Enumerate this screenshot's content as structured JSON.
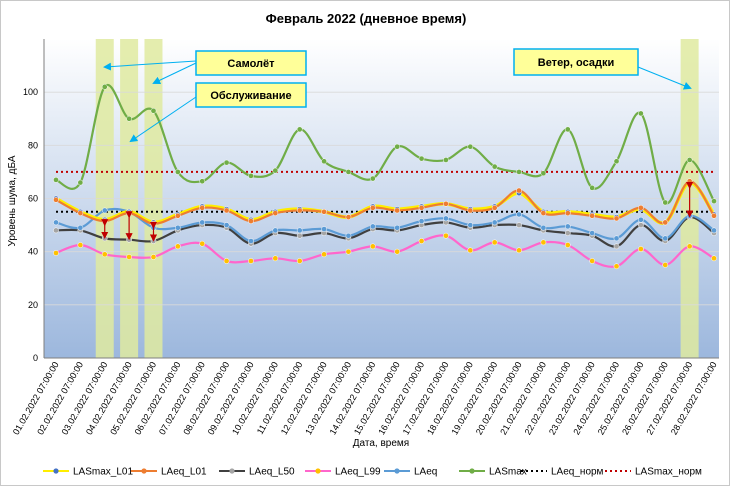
{
  "chart_data": {
    "type": "line",
    "title": "Февраль 2022 (дневное время)",
    "xlabel": "Дата, время",
    "ylabel": "Уровень шума, дБА",
    "ylim": [
      0,
      120
    ],
    "yticks": [
      0,
      20,
      40,
      60,
      80,
      100
    ],
    "grid": true,
    "legend_position": "bottom",
    "categories": [
      "01.02.2022 07:00:00",
      "02.02.2022 07:00:00",
      "03.02.2022 07:00:00",
      "04.02.2022 07:00:00",
      "05.02.2022 07:00:00",
      "06.02.2022 07:00:00",
      "07.02.2022 07:00:00",
      "08.02.2022 07:00:00",
      "09.02.2022 07:00:00",
      "10.02.2022 07:00:00",
      "11.02.2022 07:00:00",
      "12.02.2022 07:00:00",
      "13.02.2022 07:00:00",
      "14.02.2022 07:00:00",
      "15.02.2022 07:00:00",
      "16.02.2022 07:00:00",
      "17.02.2022 07:00:00",
      "18.02.2022 07:00:00",
      "19.02.2022 07:00:00",
      "20.02.2022 07:00:00",
      "21.02.2022 07:00:00",
      "22.02.2022 07:00:00",
      "23.02.2022 07:00:00",
      "24.02.2022 07:00:00",
      "25.02.2022 07:00:00",
      "26.02.2022 07:00:00",
      "27.02.2022 07:00:00",
      "28.02.2022 07:00:00"
    ],
    "series": [
      {
        "name": "LASmax_L01",
        "color": "#ffee00",
        "marker": "#4472c4",
        "style": "solid",
        "values": [
          60,
          55,
          52,
          55,
          51,
          54,
          57,
          56,
          52,
          55,
          56,
          55,
          53,
          57,
          56,
          57,
          58,
          56,
          57,
          62,
          55,
          55,
          54,
          53,
          56,
          51,
          66,
          54
        ]
      },
      {
        "name": "LAeq_L01",
        "color": "#ed7d31",
        "marker": "#ed7d31",
        "style": "solid",
        "values": [
          59.5,
          54.5,
          51.5,
          54.5,
          50.5,
          53.5,
          56.5,
          55.5,
          51.5,
          54.5,
          55.5,
          55,
          53,
          56.5,
          55.5,
          56.5,
          58,
          55.5,
          56.5,
          63,
          54.5,
          54.5,
          53.5,
          52.5,
          56.5,
          51,
          66.5,
          53.5
        ]
      },
      {
        "name": "LAeq_L50",
        "color": "#404040",
        "marker": "#a5a5a5",
        "style": "solid",
        "values": [
          48,
          48,
          45,
          44.5,
          44,
          48,
          50,
          49,
          43,
          47,
          46,
          47,
          45,
          48.5,
          48,
          50,
          51,
          49,
          50,
          50,
          48,
          47,
          46,
          42,
          50,
          44,
          53,
          47
        ]
      },
      {
        "name": "LAeq_L99",
        "color": "#ff66cc",
        "marker": "#ffc000",
        "style": "solid",
        "values": [
          39.5,
          42.5,
          39,
          38,
          38,
          42,
          43,
          36.5,
          36.5,
          37.5,
          36.5,
          39,
          40,
          42,
          40,
          44,
          46,
          40.5,
          43.5,
          40.5,
          43.5,
          42.5,
          36.5,
          34.5,
          41,
          35,
          42,
          37.5
        ]
      },
      {
        "name": "LAeq",
        "color": "#5b9bd5",
        "marker": "#5b9bd5",
        "style": "solid",
        "values": [
          51,
          49,
          55.5,
          55,
          49,
          49,
          51,
          50,
          44,
          48,
          48,
          48.5,
          46,
          49.5,
          49,
          51.5,
          52.5,
          50,
          51,
          54,
          49,
          49.5,
          47,
          45,
          52,
          45,
          53.5,
          48
        ]
      },
      {
        "name": "LASmax",
        "color": "#70ad47",
        "marker": "#70ad47",
        "style": "solid",
        "values": [
          67,
          66,
          102,
          90,
          93,
          70,
          66.5,
          73.5,
          68.5,
          70.5,
          86,
          74,
          70,
          67.5,
          79.5,
          75,
          74.5,
          79.5,
          72,
          70,
          69.5,
          86,
          64,
          74,
          92,
          58.5,
          74.5,
          59
        ]
      },
      {
        "name": "LAeq_норм",
        "color": "#000000",
        "style": "dotted",
        "values": [
          55,
          55,
          55,
          55,
          55,
          55,
          55,
          55,
          55,
          55,
          55,
          55,
          55,
          55,
          55,
          55,
          55,
          55,
          55,
          55,
          55,
          55,
          55,
          55,
          55,
          55,
          55,
          55
        ]
      },
      {
        "name": "LASmax_норм",
        "color": "#c00000",
        "style": "dotted",
        "values": [
          70,
          70,
          70,
          70,
          70,
          70,
          70,
          70,
          70,
          70,
          70,
          70,
          70,
          70,
          70,
          70,
          70,
          70,
          70,
          70,
          70,
          70,
          70,
          70,
          70,
          70,
          70,
          70
        ]
      }
    ],
    "highlighted_days": [
      "03.02.2022 07:00:00",
      "04.02.2022 07:00:00",
      "05.02.2022 07:00:00",
      "27.02.2022 07:00:00"
    ],
    "annotations": [
      {
        "label": "Самолёт",
        "fill": "#ffff99"
      },
      {
        "label": "Обслуживание",
        "fill": "#ffff99"
      },
      {
        "label": "Ветер, осадки",
        "fill": "#ffff99"
      }
    ]
  }
}
